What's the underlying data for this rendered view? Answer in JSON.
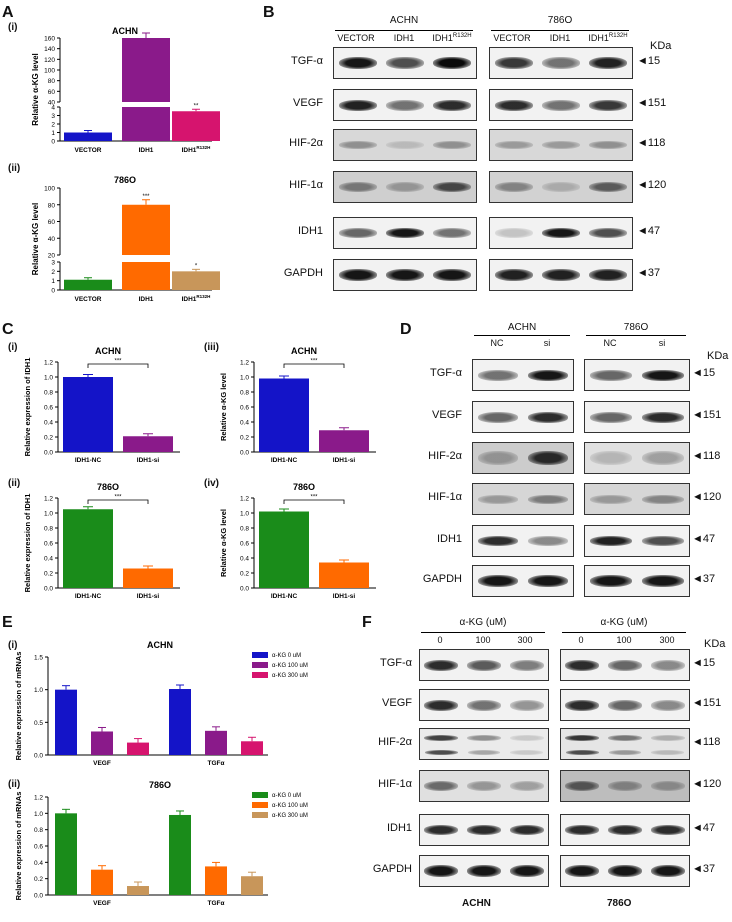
{
  "panels": {
    "A": "A",
    "B": "B",
    "C": "C",
    "D": "D",
    "E": "E",
    "F": "F"
  },
  "sublabels": {
    "i": "(i)",
    "ii": "(ii)",
    "iii": "(iii)",
    "iv": "(iv)"
  },
  "kda": "KDa",
  "markers": {
    "tgf": "◄15",
    "vegf": "◄151",
    "hif2": "◄118",
    "hif1": "◄120",
    "idh1": "◄47",
    "gapdh": "◄37"
  },
  "blot_labels": [
    "TGF-α",
    "VEGF",
    "HIF-2α",
    "HIF-1α",
    "IDH1",
    "GAPDH"
  ],
  "panelB": {
    "group1": "ACHN",
    "group2": "786O",
    "lanes": [
      "VECTOR",
      "IDH1",
      "IDH1",
      "VECTOR",
      "IDH1",
      "IDH1"
    ],
    "mut_sup": "R132H"
  },
  "panelD": {
    "group1": "ACHN",
    "group2": "786O",
    "lanes": [
      "NC",
      "si",
      "NC",
      "si"
    ]
  },
  "panelF": {
    "header1": "α-KG (uM)",
    "header2": "α-KG (uM)",
    "lanes": [
      "0",
      "100",
      "300",
      "0",
      "100",
      "300"
    ],
    "bottom1": "ACHN",
    "bottom2": "786O"
  },
  "colors": {
    "blue": "#1414c8",
    "purple": "#8a1a8a",
    "pink": "#d6146e",
    "orange": "#ff6a00",
    "green": "#1a8c1a",
    "tan": "#c8965a"
  },
  "chart_data": [
    {
      "id": "A-i",
      "type": "bar",
      "title": "ACHN",
      "ylabel": "Relative α-KG level",
      "categories": [
        "VECTOR",
        "IDH1",
        "IDH1R132H"
      ],
      "values": [
        1,
        160,
        3.5
      ],
      "yticks": [
        "0",
        "1",
        "2",
        "3",
        "4",
        "40",
        "60",
        "80",
        "100",
        "120",
        "140",
        "160"
      ],
      "sig": [
        "",
        "",
        "**"
      ]
    },
    {
      "id": "A-ii",
      "type": "bar",
      "title": "786O",
      "ylabel": "Relative α-KG level",
      "categories": [
        "VECTOR",
        "IDH1",
        "IDH1R132H"
      ],
      "values": [
        1.1,
        80,
        2.0
      ],
      "yticks": [
        "0",
        "1",
        "2",
        "3",
        "20",
        "40",
        "60",
        "80",
        "100"
      ],
      "sig": [
        "",
        "***",
        "*"
      ]
    },
    {
      "id": "C-i",
      "type": "bar",
      "title": "ACHN",
      "ylabel": "Relative expression of IDH1",
      "categories": [
        "IDH1-NC",
        "IDH1-si"
      ],
      "values": [
        1.0,
        0.21
      ],
      "ylim": [
        0,
        1.2
      ],
      "yticks": [
        "0.0",
        "0.2",
        "0.4",
        "0.6",
        "0.8",
        "1.0",
        "1.2"
      ],
      "sig": "***"
    },
    {
      "id": "C-iii",
      "type": "bar",
      "title": "ACHN",
      "ylabel": "Relative α-KG level",
      "categories": [
        "IDH1-NC",
        "IDH1-si"
      ],
      "values": [
        0.98,
        0.29
      ],
      "ylim": [
        0,
        1.2
      ],
      "yticks": [
        "0.0",
        "0.2",
        "0.4",
        "0.6",
        "0.8",
        "1.0",
        "1.2"
      ],
      "sig": "***"
    },
    {
      "id": "C-ii",
      "type": "bar",
      "title": "786O",
      "ylabel": "Relative expression of IDH1",
      "categories": [
        "IDH1-NC",
        "IDH1-si"
      ],
      "values": [
        1.05,
        0.26
      ],
      "ylim": [
        0,
        1.2
      ],
      "yticks": [
        "0.0",
        "0.2",
        "0.4",
        "0.6",
        "0.8",
        "1.0",
        "1.2"
      ],
      "sig": "***"
    },
    {
      "id": "C-iv",
      "type": "bar",
      "title": "786O",
      "ylabel": "Relative α-KG level",
      "categories": [
        "IDH1-NC",
        "IDH1-si"
      ],
      "values": [
        1.02,
        0.34
      ],
      "ylim": [
        0,
        1.2
      ],
      "yticks": [
        "0.0",
        "0.2",
        "0.4",
        "0.6",
        "0.8",
        "1.0",
        "1.2"
      ],
      "sig": "***"
    },
    {
      "id": "E-i",
      "type": "bar",
      "title": "ACHN",
      "ylabel": "Relative expression of mRNAs",
      "categories": [
        "VEGF",
        "TGFα"
      ],
      "ylim": [
        0,
        1.5
      ],
      "yticks": [
        "0.0",
        "0.5",
        "1.0",
        "1.5"
      ],
      "series": [
        {
          "name": "α-KG 0 uM",
          "values": [
            1.0,
            1.01
          ]
        },
        {
          "name": "α-KG 100 uM",
          "values": [
            0.36,
            0.37
          ]
        },
        {
          "name": "α-KG 300 uM",
          "values": [
            0.19,
            0.21
          ]
        }
      ]
    },
    {
      "id": "E-ii",
      "type": "bar",
      "title": "786O",
      "ylabel": "Relative expression of mRNAs",
      "categories": [
        "VEGF",
        "TGFα"
      ],
      "ylim": [
        0,
        1.2
      ],
      "yticks": [
        "0.0",
        "0.2",
        "0.4",
        "0.6",
        "0.8",
        "1.0",
        "1.2"
      ],
      "series": [
        {
          "name": "α-KG 0 uM",
          "values": [
            1.0,
            0.98
          ]
        },
        {
          "name": "α-KG 100 uM",
          "values": [
            0.31,
            0.35
          ]
        },
        {
          "name": "α-KG 300 uM",
          "values": [
            0.11,
            0.23
          ]
        }
      ]
    }
  ]
}
